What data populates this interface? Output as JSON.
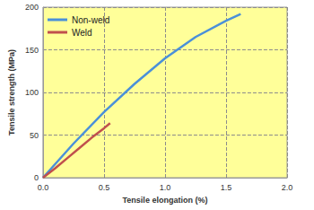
{
  "chart_data": {
    "type": "line",
    "x_label": "Tensile elongation (%)",
    "y_label": "Tensile strength (MPa)",
    "series": [
      {
        "name": "Non-weld",
        "color": "#4a90d9",
        "x": [
          0,
          0.25,
          0.5,
          0.75,
          1.0,
          1.25,
          1.5,
          1.62
        ],
        "values": [
          0,
          40,
          77,
          110,
          140,
          165,
          184,
          192
        ]
      },
      {
        "name": "Weld",
        "color": "#c0504d",
        "x": [
          0,
          0.1,
          0.2,
          0.3,
          0.4,
          0.5,
          0.55
        ],
        "values": [
          0,
          11,
          23,
          35,
          47,
          58,
          64
        ]
      }
    ],
    "xlim": [
      0,
      2
    ],
    "xticks": [
      {
        "value": 0,
        "label": "0.0"
      },
      {
        "value": 0.5,
        "label": "0.5"
      },
      {
        "value": 1,
        "label": "1.0"
      },
      {
        "value": 1.5,
        "label": "1.5"
      },
      {
        "value": 2,
        "label": "2.0"
      }
    ],
    "ylim": [
      0,
      200
    ],
    "yticks": [
      0,
      50,
      100,
      150,
      200
    ],
    "grid": true,
    "legend": "upper left",
    "marker": "none",
    "line_style": "solid"
  }
}
